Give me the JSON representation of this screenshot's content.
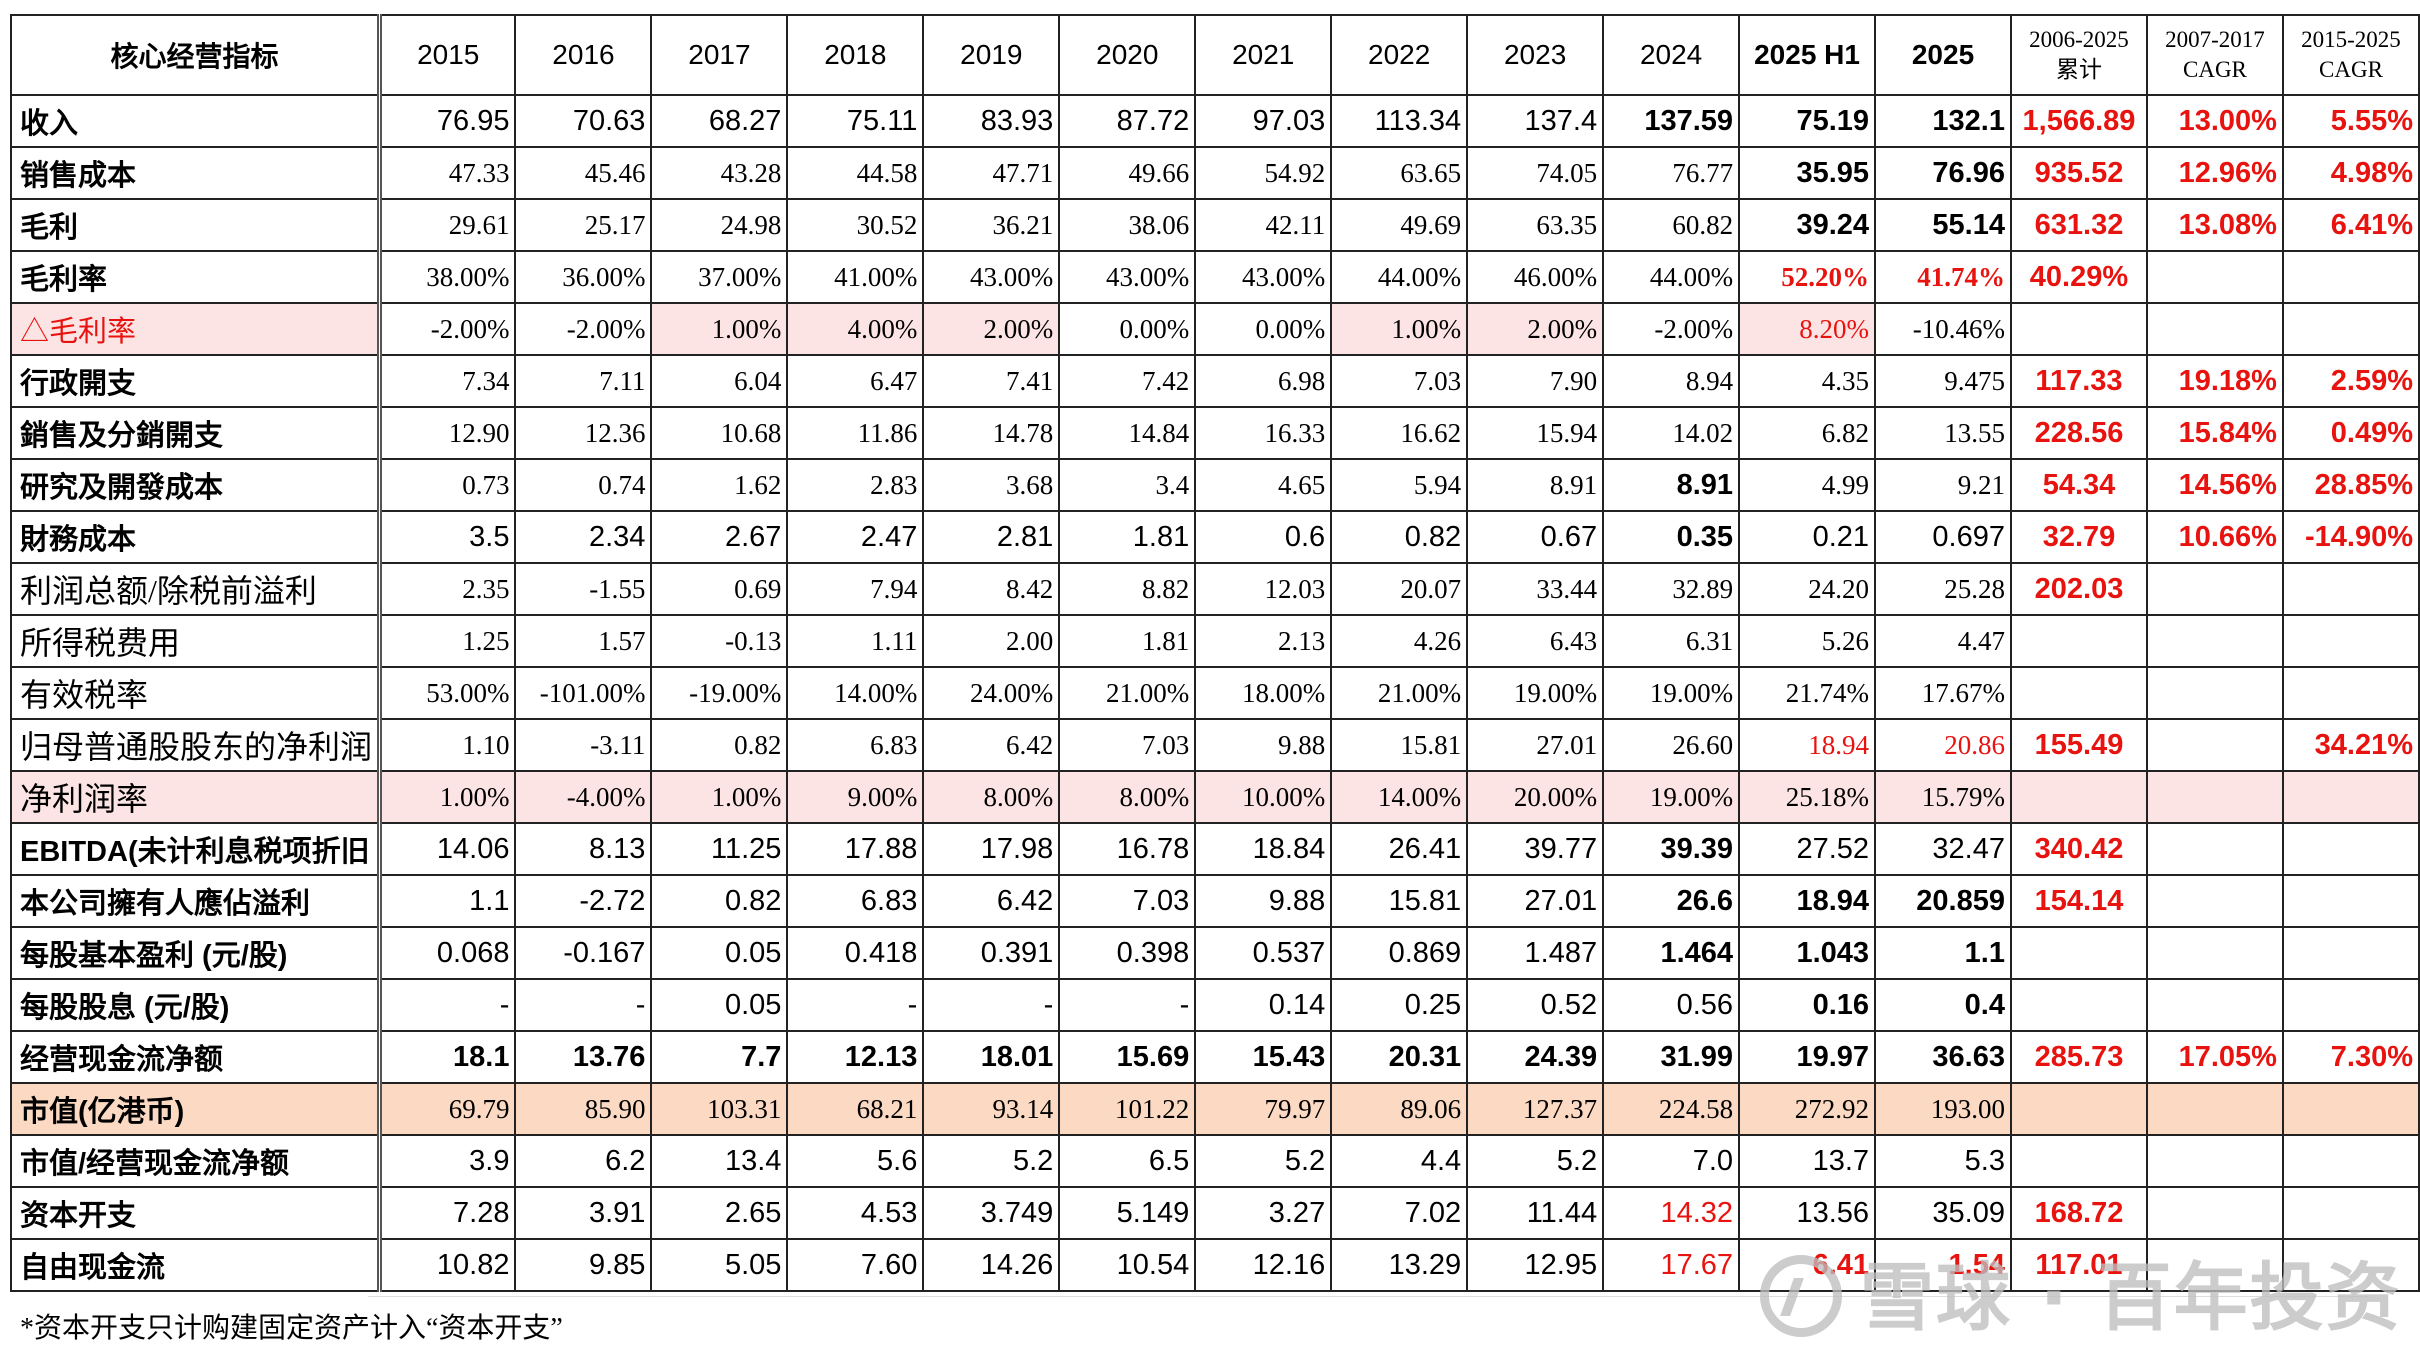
{
  "table": {
    "header_label": "核心经营指标",
    "years": [
      "2015",
      "2016",
      "2017",
      "2018",
      "2019",
      "2020",
      "2021",
      "2022",
      "2023",
      "2024",
      "2025 H1",
      "2025"
    ],
    "extra_headers": [
      [
        "2006-2025",
        "累计"
      ],
      [
        "2007-2017",
        "CAGR"
      ],
      [
        "2015-2025",
        "CAGR"
      ]
    ],
    "rows": [
      {
        "label": "收入",
        "values": [
          "76.95",
          "70.63",
          "68.27",
          "75.11",
          "83.93",
          "87.72",
          "97.03",
          "113.34",
          "137.4",
          "137.59",
          "75.19",
          "132.1"
        ],
        "extras": [
          "1,566.89",
          "13.00%",
          "5.55%"
        ]
      },
      {
        "label": "销售成本",
        "values": [
          "47.33",
          "45.46",
          "43.28",
          "44.58",
          "47.71",
          "49.66",
          "54.92",
          "63.65",
          "74.05",
          "76.77",
          "35.95",
          "76.96"
        ],
        "extras": [
          "935.52",
          "12.96%",
          "4.98%"
        ]
      },
      {
        "label": "毛利",
        "values": [
          "29.61",
          "25.17",
          "24.98",
          "30.52",
          "36.21",
          "38.06",
          "42.11",
          "49.69",
          "63.35",
          "60.82",
          "39.24",
          "55.14"
        ],
        "extras": [
          "631.32",
          "13.08%",
          "6.41%"
        ]
      },
      {
        "label": "毛利率",
        "values": [
          "38.00%",
          "36.00%",
          "37.00%",
          "41.00%",
          "43.00%",
          "43.00%",
          "43.00%",
          "44.00%",
          "46.00%",
          "44.00%",
          "52.20%",
          "41.74%"
        ],
        "extras": [
          "40.29%",
          "",
          ""
        ]
      },
      {
        "label": "△毛利率",
        "values": [
          "-2.00%",
          "-2.00%",
          "1.00%",
          "4.00%",
          "2.00%",
          "0.00%",
          "0.00%",
          "1.00%",
          "2.00%",
          "-2.00%",
          "8.20%",
          "-10.46%"
        ],
        "extras": [
          "",
          "",
          ""
        ]
      },
      {
        "label": "行政開支",
        "values": [
          "7.34",
          "7.11",
          "6.04",
          "6.47",
          "7.41",
          "7.42",
          "6.98",
          "7.03",
          "7.90",
          "8.94",
          "4.35",
          "9.475"
        ],
        "extras": [
          "117.33",
          "19.18%",
          "2.59%"
        ]
      },
      {
        "label": "銷售及分銷開支",
        "values": [
          "12.90",
          "12.36",
          "10.68",
          "11.86",
          "14.78",
          "14.84",
          "16.33",
          "16.62",
          "15.94",
          "14.02",
          "6.82",
          "13.55"
        ],
        "extras": [
          "228.56",
          "15.84%",
          "0.49%"
        ]
      },
      {
        "label": "研究及開發成本",
        "values": [
          "0.73",
          "0.74",
          "1.62",
          "2.83",
          "3.68",
          "3.4",
          "4.65",
          "5.94",
          "8.91",
          "8.91",
          "4.99",
          "9.21"
        ],
        "extras": [
          "54.34",
          "14.56%",
          "28.85%"
        ]
      },
      {
        "label": "財務成本",
        "values": [
          "3.5",
          "2.34",
          "2.67",
          "2.47",
          "2.81",
          "1.81",
          "0.6",
          "0.82",
          "0.67",
          "0.35",
          "0.21",
          "0.697"
        ],
        "extras": [
          "32.79",
          "10.66%",
          "-14.90%"
        ]
      },
      {
        "label": "利润总额/除税前溢利",
        "values": [
          "2.35",
          "-1.55",
          "0.69",
          "7.94",
          "8.42",
          "8.82",
          "12.03",
          "20.07",
          "33.44",
          "32.89",
          "24.20",
          "25.28"
        ],
        "extras": [
          "202.03",
          "",
          ""
        ]
      },
      {
        "label": "所得税费用",
        "values": [
          "1.25",
          "1.57",
          "-0.13",
          "1.11",
          "2.00",
          "1.81",
          "2.13",
          "4.26",
          "6.43",
          "6.31",
          "5.26",
          "4.47"
        ],
        "extras": [
          "",
          "",
          ""
        ]
      },
      {
        "label": "有效税率",
        "values": [
          "53.00%",
          "-101.00%",
          "-19.00%",
          "14.00%",
          "24.00%",
          "21.00%",
          "18.00%",
          "21.00%",
          "19.00%",
          "19.00%",
          "21.74%",
          "17.67%"
        ],
        "extras": [
          "",
          "",
          ""
        ]
      },
      {
        "label": "归母普通股股东的净利润",
        "values": [
          "1.10",
          "-3.11",
          "0.82",
          "6.83",
          "6.42",
          "7.03",
          "9.88",
          "15.81",
          "27.01",
          "26.60",
          "18.94",
          "20.86"
        ],
        "extras": [
          "155.49",
          "",
          "34.21%"
        ]
      },
      {
        "label": "净利润率",
        "values": [
          "1.00%",
          "-4.00%",
          "1.00%",
          "9.00%",
          "8.00%",
          "8.00%",
          "10.00%",
          "14.00%",
          "20.00%",
          "19.00%",
          "25.18%",
          "15.79%"
        ],
        "extras": [
          "",
          "",
          ""
        ]
      },
      {
        "label": "EBITDA(未计利息税项折旧",
        "values": [
          "14.06",
          "8.13",
          "11.25",
          "17.88",
          "17.98",
          "16.78",
          "18.84",
          "26.41",
          "39.77",
          "39.39",
          "27.52",
          "32.47"
        ],
        "extras": [
          "340.42",
          "",
          ""
        ]
      },
      {
        "label": "本公司擁有人應佔溢利",
        "values": [
          "1.1",
          "-2.72",
          "0.82",
          "6.83",
          "6.42",
          "7.03",
          "9.88",
          "15.81",
          "27.01",
          "26.6",
          "18.94",
          "20.859"
        ],
        "extras": [
          "154.14",
          "",
          ""
        ]
      },
      {
        "label": "每股基本盈利 (元/股)",
        "values": [
          "0.068",
          "-0.167",
          "0.05",
          "0.418",
          "0.391",
          "0.398",
          "0.537",
          "0.869",
          "1.487",
          "1.464",
          "1.043",
          "1.1"
        ],
        "extras": [
          "",
          "",
          ""
        ]
      },
      {
        "label": "每股股息 (元/股)",
        "values": [
          "-",
          "-",
          "0.05",
          "-",
          "-",
          "-",
          "0.14",
          "0.25",
          "0.52",
          "0.56",
          "0.16",
          "0.4"
        ],
        "extras": [
          "",
          "",
          ""
        ]
      },
      {
        "label": "经营现金流净额",
        "values": [
          "18.1",
          "13.76",
          "7.7",
          "12.13",
          "18.01",
          "15.69",
          "15.43",
          "20.31",
          "24.39",
          "31.99",
          "19.97",
          "36.63"
        ],
        "extras": [
          "285.73",
          "17.05%",
          "7.30%"
        ]
      },
      {
        "label": "市值(亿港币)",
        "values": [
          "69.79",
          "85.90",
          "103.31",
          "68.21",
          "93.14",
          "101.22",
          "79.97",
          "89.06",
          "127.37",
          "224.58",
          "272.92",
          "193.00"
        ],
        "extras": [
          "",
          "",
          ""
        ]
      },
      {
        "label": "市值/经营现金流净额",
        "values": [
          "3.9",
          "6.2",
          "13.4",
          "5.6",
          "5.2",
          "6.5",
          "5.2",
          "4.4",
          "5.2",
          "7.0",
          "13.7",
          "5.3"
        ],
        "extras": [
          "",
          "",
          ""
        ]
      },
      {
        "label": "资本开支",
        "values": [
          "7.28",
          "3.91",
          "2.65",
          "4.53",
          "3.749",
          "5.149",
          "3.27",
          "7.02",
          "11.44",
          "14.32",
          "13.56",
          "35.09"
        ],
        "extras": [
          "168.72",
          "",
          ""
        ]
      },
      {
        "label": "自由现金流",
        "values": [
          "10.82",
          "9.85",
          "5.05",
          "7.60",
          "14.26",
          "10.54",
          "12.16",
          "13.29",
          "12.95",
          "17.67",
          "6.41",
          "1.54"
        ],
        "extras": [
          "117.01",
          "",
          ""
        ]
      }
    ]
  },
  "footnote": "*资本开支只计购建固定资产计入“资本开支”",
  "watermark": "雪球 · 百年投资",
  "colors": {
    "accent_red": "#e8130f",
    "pink_fill": "#fce4e4",
    "peach_fill": "#fbd9c2"
  }
}
